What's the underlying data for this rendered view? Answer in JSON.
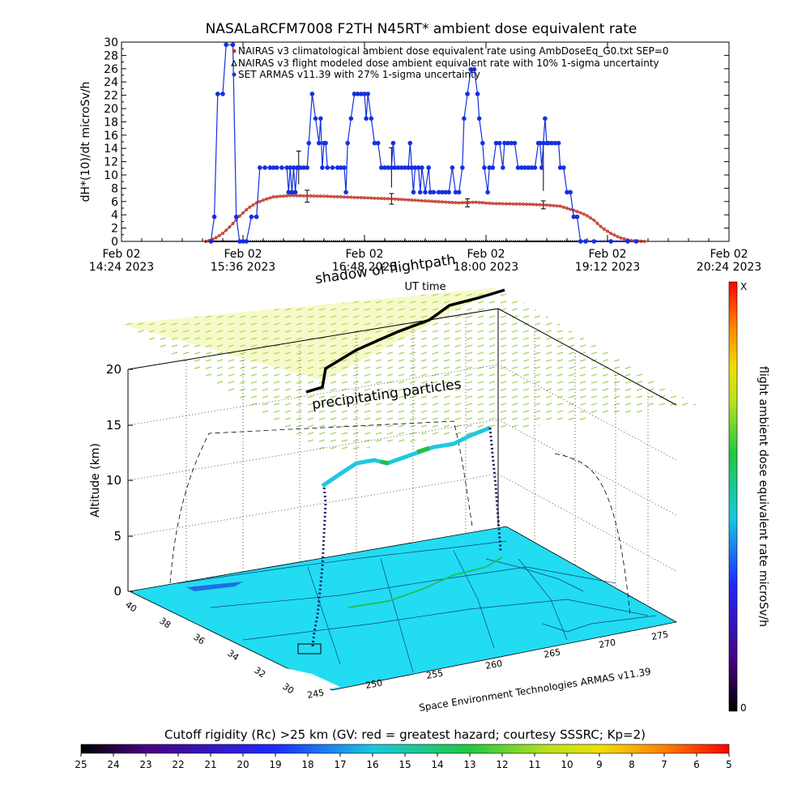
{
  "chart_data": [
    {
      "type": "line",
      "title": "NASALaRCFM7008  F2TH N45RT* ambient dose equivalent rate",
      "ylabel": "dH*(10)/dt microSv/h",
      "xlabel": "UT time",
      "ylim": [
        0,
        30
      ],
      "yticks": [
        0,
        2,
        4,
        6,
        8,
        10,
        12,
        14,
        16,
        18,
        20,
        22,
        24,
        26,
        28,
        30
      ],
      "xlim": [
        0,
        360
      ],
      "xticks": [
        {
          "m": 0,
          "date": "Feb 02",
          "time": "14:24 2023"
        },
        {
          "m": 72,
          "date": "Feb 02",
          "time": "15:36 2023"
        },
        {
          "m": 144,
          "date": "Feb 02",
          "time": "16:48 2023"
        },
        {
          "m": 216,
          "date": "Feb 02",
          "time": "18:00 2023"
        },
        {
          "m": 288,
          "date": "Feb 02",
          "time": "19:12 2023"
        },
        {
          "m": 360,
          "date": "Feb 02",
          "time": "20:24 2023"
        }
      ],
      "legend_placement": "top-right",
      "series": [
        {
          "name": "NAIRAS v3 climatological ambient dose equivalent rate using AmbDoseEq_G0.txt SEP=0",
          "color": "#c0392b",
          "points": [
            [
              50,
              0
            ],
            [
              55,
              0.4
            ],
            [
              60,
              1.2
            ],
            [
              65,
              2.4
            ],
            [
              70,
              3.8
            ],
            [
              75,
              5
            ],
            [
              80,
              5.8
            ],
            [
              85,
              6.3
            ],
            [
              90,
              6.7
            ],
            [
              100,
              6.9
            ],
            [
              120,
              6.8
            ],
            [
              140,
              6.6
            ],
            [
              160,
              6.4
            ],
            [
              180,
              6.1
            ],
            [
              200,
              5.8
            ],
            [
              210,
              5.9
            ],
            [
              220,
              5.7
            ],
            [
              240,
              5.6
            ],
            [
              250,
              5.5
            ],
            [
              260,
              5.3
            ],
            [
              270,
              4.5
            ],
            [
              275,
              4
            ],
            [
              280,
              3.2
            ],
            [
              285,
              2
            ],
            [
              290,
              1.2
            ],
            [
              295,
              0.6
            ],
            [
              300,
              0.2
            ],
            [
              305,
              0.05
            ],
            [
              310,
              0
            ]
          ]
        },
        {
          "name": "NAIRAS v3 flight modeled dose ambient equivalent rate with 10% 1-sigma uncertainty",
          "color": "#000000",
          "points": [
            [
              50,
              0
            ],
            [
              55,
              0.4
            ],
            [
              60,
              1.2
            ],
            [
              65,
              2.4
            ],
            [
              70,
              3.8
            ],
            [
              75,
              5
            ],
            [
              80,
              5.8
            ],
            [
              85,
              6.3
            ],
            [
              90,
              6.7
            ],
            [
              100,
              6.9
            ],
            [
              120,
              6.8
            ],
            [
              140,
              6.6
            ],
            [
              160,
              6.4
            ],
            [
              180,
              6.1
            ],
            [
              200,
              5.8
            ],
            [
              210,
              5.9
            ],
            [
              220,
              5.7
            ],
            [
              240,
              5.6
            ],
            [
              250,
              5.5
            ],
            [
              260,
              5.3
            ],
            [
              270,
              4.5
            ],
            [
              275,
              4
            ],
            [
              280,
              3.2
            ],
            [
              285,
              2
            ],
            [
              290,
              1.2
            ],
            [
              295,
              0.6
            ],
            [
              300,
              0.2
            ],
            [
              305,
              0.05
            ],
            [
              310,
              0
            ]
          ],
          "error_bars": [
            [
              110,
              6.8,
              0.9
            ],
            [
              160,
              6.4,
              0.8
            ],
            [
              205,
              5.8,
              0.6
            ],
            [
              250,
              5.5,
              0.6
            ]
          ]
        },
        {
          "name": "SET ARMAS v11.39 with 27% 1-sigma uncertainty",
          "color": "#1530e0",
          "points": [
            [
              53,
              0
            ],
            [
              55,
              3.7
            ],
            [
              57,
              22.2
            ],
            [
              60,
              22.2
            ],
            [
              62,
              29.6
            ],
            [
              66,
              29.6
            ],
            [
              68,
              3.7
            ],
            [
              70,
              0
            ],
            [
              72,
              0
            ],
            [
              74,
              0
            ],
            [
              77,
              3.7
            ],
            [
              80,
              3.7
            ],
            [
              82,
              11.1
            ],
            [
              85,
              11.1
            ],
            [
              88,
              11.1
            ],
            [
              90,
              11.1
            ],
            [
              92,
              11.1
            ],
            [
              95,
              11.1
            ],
            [
              98,
              11.1
            ],
            [
              99,
              7.4
            ],
            [
              100,
              11.1
            ],
            [
              101,
              7.4
            ],
            [
              102,
              11.1
            ],
            [
              103,
              7.4
            ],
            [
              104,
              11.1
            ],
            [
              106,
              11.1
            ],
            [
              108,
              11.1
            ],
            [
              110,
              11.1
            ],
            [
              111,
              14.8
            ],
            [
              113,
              22.2
            ],
            [
              115,
              18.5
            ],
            [
              117,
              14.8
            ],
            [
              118,
              18.5
            ],
            [
              119,
              11.1
            ],
            [
              120,
              14.8
            ],
            [
              121,
              14.8
            ],
            [
              122,
              11.1
            ],
            [
              125,
              11.1
            ],
            [
              128,
              11.1
            ],
            [
              130,
              11.1
            ],
            [
              132,
              11.1
            ],
            [
              133,
              7.4
            ],
            [
              134,
              14.8
            ],
            [
              136,
              18.5
            ],
            [
              138,
              22.2
            ],
            [
              140,
              22.2
            ],
            [
              142,
              22.2
            ],
            [
              144,
              22.2
            ],
            [
              145,
              18.5
            ],
            [
              146,
              22.2
            ],
            [
              148,
              18.5
            ],
            [
              150,
              14.8
            ],
            [
              152,
              14.8
            ],
            [
              154,
              11.1
            ],
            [
              156,
              11.1
            ],
            [
              158,
              11.1
            ],
            [
              160,
              11.1
            ],
            [
              161,
              14.8
            ],
            [
              162,
              11.1
            ],
            [
              164,
              11.1
            ],
            [
              166,
              11.1
            ],
            [
              168,
              11.1
            ],
            [
              170,
              11.1
            ],
            [
              171,
              14.8
            ],
            [
              172,
              11.1
            ],
            [
              173,
              7.4
            ],
            [
              174,
              11.1
            ],
            [
              176,
              11.1
            ],
            [
              177,
              7.4
            ],
            [
              178,
              11.1
            ],
            [
              180,
              7.4
            ],
            [
              182,
              11.1
            ],
            [
              183,
              7.4
            ],
            [
              185,
              7.4
            ],
            [
              188,
              7.4
            ],
            [
              190,
              7.4
            ],
            [
              192,
              7.4
            ],
            [
              194,
              7.4
            ],
            [
              196,
              11.1
            ],
            [
              198,
              7.4
            ],
            [
              200,
              7.4
            ],
            [
              202,
              11.1
            ],
            [
              203,
              18.5
            ],
            [
              205,
              22.2
            ],
            [
              207,
              25.9
            ],
            [
              209,
              25.9
            ],
            [
              211,
              22.2
            ],
            [
              212,
              18.5
            ],
            [
              214,
              14.8
            ],
            [
              215,
              11.1
            ],
            [
              217,
              7.4
            ],
            [
              218,
              11.1
            ],
            [
              220,
              11.1
            ],
            [
              222,
              14.8
            ],
            [
              224,
              14.8
            ],
            [
              226,
              11.1
            ],
            [
              227,
              14.8
            ],
            [
              229,
              14.8
            ],
            [
              231,
              14.8
            ],
            [
              233,
              14.8
            ],
            [
              235,
              11.1
            ],
            [
              237,
              11.1
            ],
            [
              239,
              11.1
            ],
            [
              241,
              11.1
            ],
            [
              243,
              11.1
            ],
            [
              245,
              11.1
            ],
            [
              247,
              14.8
            ],
            [
              248,
              14.8
            ],
            [
              249,
              11.1
            ],
            [
              250,
              14.8
            ],
            [
              251,
              18.5
            ],
            [
              252,
              14.8
            ],
            [
              253,
              14.8
            ],
            [
              255,
              14.8
            ],
            [
              257,
              14.8
            ],
            [
              259,
              14.8
            ],
            [
              260,
              11.1
            ],
            [
              262,
              11.1
            ],
            [
              264,
              7.4
            ],
            [
              266,
              7.4
            ],
            [
              268,
              3.7
            ],
            [
              270,
              3.7
            ],
            [
              272,
              0
            ],
            [
              275,
              0
            ],
            [
              280,
              0
            ],
            [
              290,
              0
            ],
            [
              300,
              0
            ],
            [
              305,
              0
            ]
          ]
        }
      ]
    },
    {
      "type": "3d-trajectory",
      "zlabel": "Altitude (km)",
      "zticks": [
        "0",
        "5",
        "10",
        "15",
        "20"
      ],
      "lat_ticks": [
        "40",
        "38",
        "36",
        "34",
        "32",
        "30"
      ],
      "lon_ticks": [
        "245",
        "250",
        "255",
        "260",
        "265",
        "270",
        "275"
      ],
      "annotations": {
        "shadow": "shadow of flightpath",
        "particles": "precipitating particles",
        "credit": "Space Environment Technologies ARMAS v11.39"
      },
      "vertical_colorbar": {
        "label": "flight ambient dose equivalent rate microSv/h",
        "max_label": "X",
        "min_label": "0"
      },
      "horizontal_colorbar": {
        "label": "Cutoff rigidity (Rc) >25 km (GV: red = greatest hazard; courtesy SSSRC; Kp=2)",
        "ticks": [
          "25",
          "24",
          "23",
          "22",
          "21",
          "20",
          "19",
          "18",
          "17",
          "16",
          "15",
          "14",
          "13",
          "12",
          "11",
          "10",
          "9",
          "8",
          "7",
          "6",
          "5"
        ]
      }
    }
  ]
}
